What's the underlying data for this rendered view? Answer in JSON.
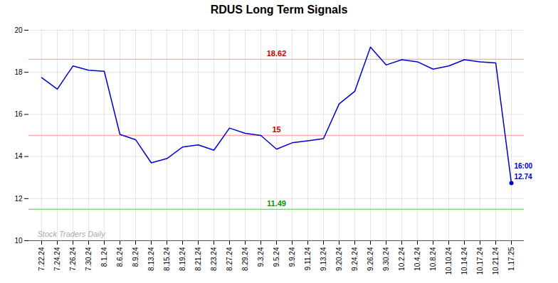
{
  "chart_data": {
    "type": "line",
    "title": "RDUS Long Term Signals",
    "categories": [
      "7.22.24",
      "7.24.24",
      "7.26.24",
      "7.30.24",
      "8.1.24",
      "8.6.24",
      "8.9.24",
      "8.13.24",
      "8.15.24",
      "8.19.24",
      "8.21.24",
      "8.23.24",
      "8.27.24",
      "8.29.24",
      "9.3.24",
      "9.5.24",
      "9.9.24",
      "9.11.24",
      "9.13.24",
      "9.20.24",
      "9.24.24",
      "9.26.24",
      "9.30.24",
      "10.2.24",
      "10.4.24",
      "10.8.24",
      "10.10.24",
      "10.14.24",
      "10.17.24",
      "10.21.24",
      "1.17.25"
    ],
    "values": [
      17.75,
      17.2,
      18.3,
      18.1,
      18.05,
      15.05,
      14.8,
      13.7,
      13.9,
      14.45,
      14.55,
      14.3,
      15.35,
      15.1,
      15.0,
      14.35,
      14.65,
      14.75,
      14.85,
      16.5,
      17.1,
      19.2,
      18.35,
      18.6,
      18.5,
      18.15,
      18.3,
      18.6,
      18.5,
      18.45,
      12.74
    ],
    "color": "#0000cc",
    "ylim": [
      10,
      20
    ],
    "yticks": [
      10,
      12,
      14,
      16,
      18,
      20
    ],
    "grid": true,
    "hlines": [
      {
        "y": 18.62,
        "label": "18.62",
        "color": "#ffaaaa",
        "label_color": "#cc0000"
      },
      {
        "y": 15.0,
        "label": "15",
        "color": "#ffaaaa",
        "label_color": "#cc0000"
      },
      {
        "y": 11.49,
        "label": "11.49",
        "color": "#77cc77",
        "label_color": "#009900"
      }
    ],
    "annotations": [
      {
        "text": "16:00",
        "color": "#0000cc"
      },
      {
        "text": "12.74",
        "color": "#0000cc"
      }
    ],
    "watermark": {
      "text": "Stock Traders Daily",
      "color": "#aaaaaa"
    }
  }
}
